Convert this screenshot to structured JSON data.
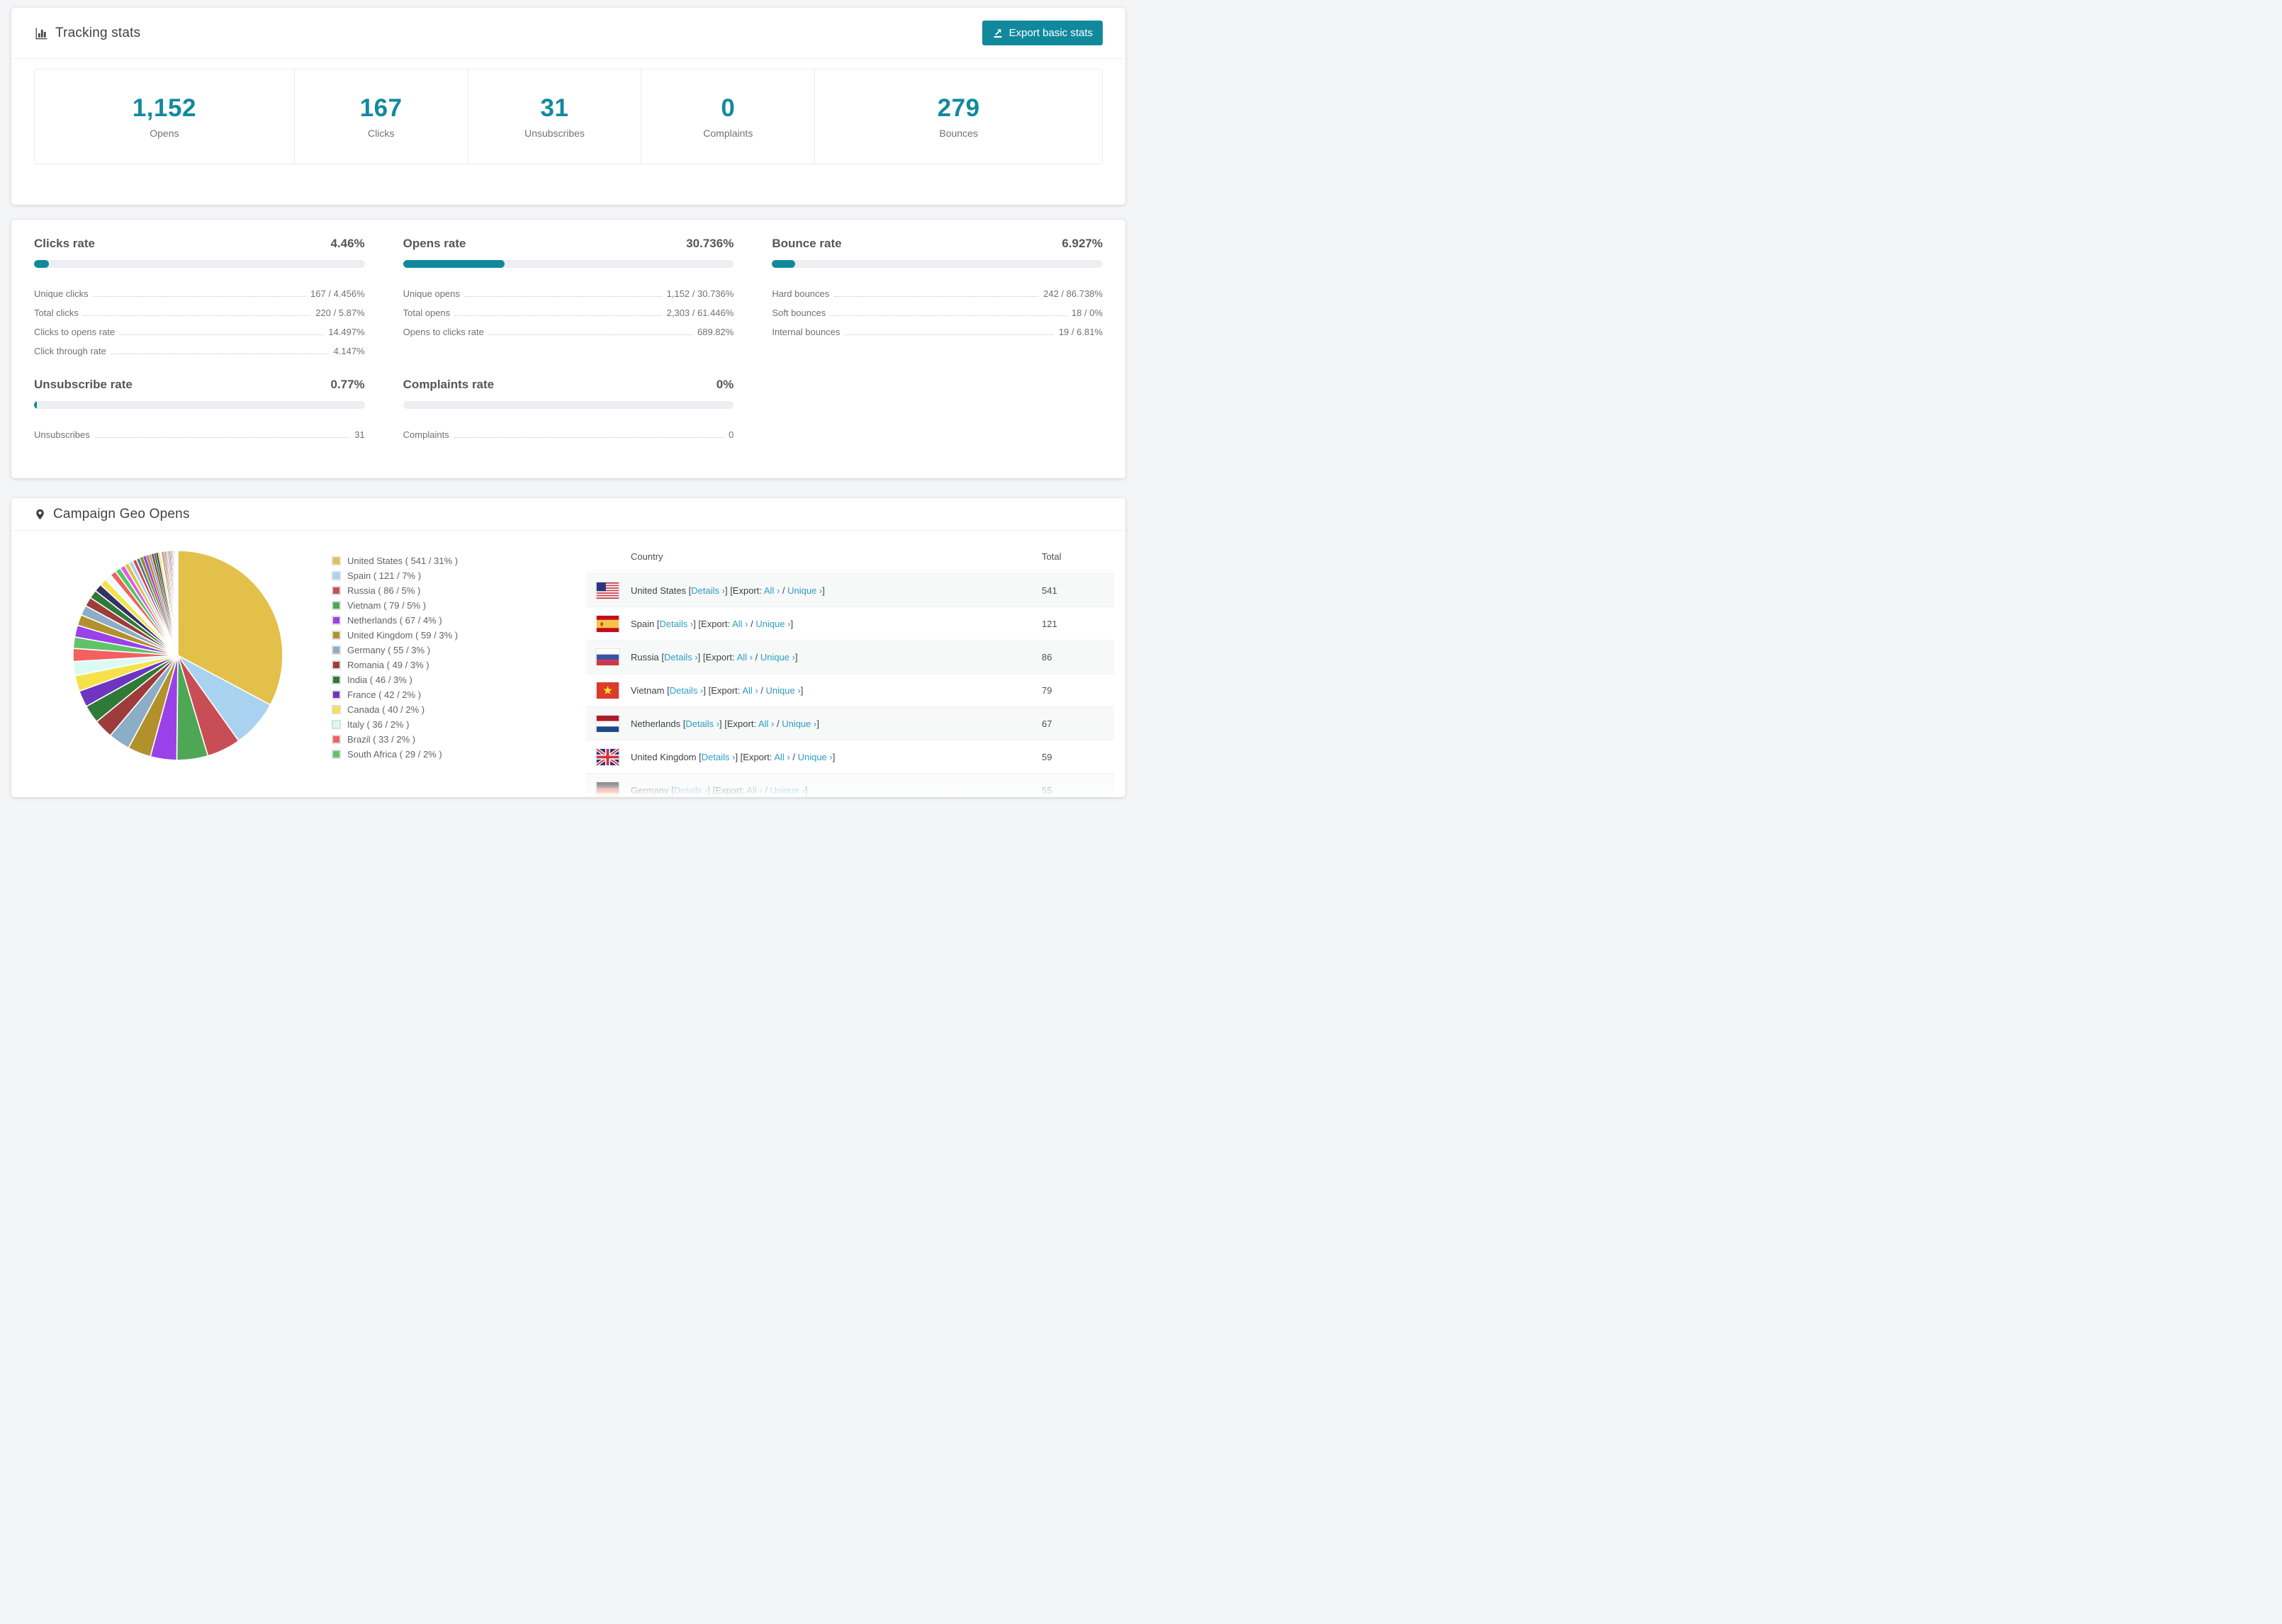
{
  "colors": {
    "accent_teal": "#11899d",
    "link_teal": "#2b9fc4",
    "stat_number": "#12899e"
  },
  "tracking_stats": {
    "title": "Tracking stats",
    "export_button_label": "Export basic stats",
    "summary": [
      {
        "value": "1,152",
        "label": "Opens"
      },
      {
        "value": "167",
        "label": "Clicks"
      },
      {
        "value": "31",
        "label": "Unsubscribes"
      },
      {
        "value": "0",
        "label": "Complaints"
      },
      {
        "value": "279",
        "label": "Bounces"
      }
    ]
  },
  "rates": {
    "blocks": [
      {
        "title": "Clicks rate",
        "value": "4.46%",
        "percent": 4.46,
        "rows": [
          {
            "label": "Unique clicks",
            "value": "167 / 4.456%"
          },
          {
            "label": "Total clicks",
            "value": "220 / 5.87%"
          },
          {
            "label": "Clicks to opens rate",
            "value": "14.497%"
          },
          {
            "label": "Click through rate",
            "value": "4.147%"
          }
        ]
      },
      {
        "title": "Opens rate",
        "value": "30.736%",
        "percent": 30.736,
        "rows": [
          {
            "label": "Unique opens",
            "value": "1,152 / 30.736%"
          },
          {
            "label": "Total opens",
            "value": "2,303 / 61.446%"
          },
          {
            "label": "Opens to clicks rate",
            "value": "689.82%"
          }
        ]
      },
      {
        "title": "Bounce rate",
        "value": "6.927%",
        "percent": 6.927,
        "rows": [
          {
            "label": "Hard bounces",
            "value": "242 / 86.738%"
          },
          {
            "label": "Soft bounces",
            "value": "18 / 0%"
          },
          {
            "label": "Internal bounces",
            "value": "19 / 6.81%"
          }
        ]
      },
      {
        "title": "Unsubscribe rate",
        "value": "0.77%",
        "percent": 0.77,
        "rows": [
          {
            "label": "Unsubscribes",
            "value": "31"
          }
        ]
      },
      {
        "title": "Complaints rate",
        "value": "0%",
        "percent": 0,
        "rows": [
          {
            "label": "Complaints",
            "value": "0"
          }
        ]
      }
    ]
  },
  "geo": {
    "title": "Campaign Geo Opens",
    "legend": [
      {
        "label": "United States ( 541 / 31% )",
        "color": "#e2c04a"
      },
      {
        "label": "Spain ( 121 / 7% )",
        "color": "#a8d2f0"
      },
      {
        "label": "Russia ( 86 / 5% )",
        "color": "#c94d55"
      },
      {
        "label": "Vietnam ( 79 / 5% )",
        "color": "#4ea754"
      },
      {
        "label": "Netherlands ( 67 / 4% )",
        "color": "#9a41e9"
      },
      {
        "label": "United Kingdom ( 59 / 3% )",
        "color": "#b2912c"
      },
      {
        "label": "Germany ( 55 / 3% )",
        "color": "#8cadc6"
      },
      {
        "label": "Romania ( 49 / 3% )",
        "color": "#9e3c3c"
      },
      {
        "label": "India ( 46 / 3% )",
        "color": "#2e7a36"
      },
      {
        "label": "France ( 42 / 2% )",
        "color": "#6d35c0"
      },
      {
        "label": "Canada ( 40 / 2% )",
        "color": "#f6e14b"
      },
      {
        "label": "Italy ( 36 / 2% )",
        "color": "#dcfaf4"
      },
      {
        "label": "Brazil ( 33 / 2% )",
        "color": "#f26060"
      },
      {
        "label": "South Africa ( 29 / 2% )",
        "color": "#5fc468"
      }
    ],
    "table": {
      "headers": [
        "Country",
        "Total"
      ],
      "links": {
        "details": "Details ›",
        "export_label": "Export:",
        "all": "All ›",
        "slash": "/",
        "unique": "Unique ›"
      },
      "rows": [
        {
          "country": "United States",
          "flag": "us",
          "total": "541"
        },
        {
          "country": "Spain",
          "flag": "es",
          "total": "121"
        },
        {
          "country": "Russia",
          "flag": "ru",
          "total": "86"
        },
        {
          "country": "Vietnam",
          "flag": "vn",
          "total": "79"
        },
        {
          "country": "Netherlands",
          "flag": "nl",
          "total": "67"
        },
        {
          "country": "United Kingdom",
          "flag": "gb",
          "total": "59"
        },
        {
          "country": "Germany",
          "flag": "de",
          "total": "55",
          "partially_visible": true
        }
      ]
    }
  },
  "chart_data": {
    "type": "pie",
    "title": "Campaign Geo Opens",
    "labels": [
      "United States",
      "Spain",
      "Russia",
      "Vietnam",
      "Netherlands",
      "United Kingdom",
      "Germany",
      "Romania",
      "India",
      "France",
      "Canada",
      "Italy",
      "Brazil",
      "South Africa"
    ],
    "values": [
      541,
      121,
      86,
      79,
      67,
      59,
      55,
      49,
      46,
      42,
      40,
      36,
      33,
      29
    ],
    "percent_labels": [
      "31%",
      "7%",
      "5%",
      "5%",
      "4%",
      "3%",
      "3%",
      "3%",
      "3%",
      "2%",
      "2%",
      "2%",
      "2%",
      "2%"
    ],
    "colors": [
      "#e2c04a",
      "#a8d2f0",
      "#c94d55",
      "#4ea754",
      "#9a41e9",
      "#b2912c",
      "#8cadc6",
      "#9e3c3c",
      "#2e7a36",
      "#6d35c0",
      "#f6e14b",
      "#dcfaf4",
      "#f26060",
      "#5fc468"
    ],
    "unlabeled_small_slices": true,
    "start_angle_deg": -90,
    "direction": "clockwise",
    "legend_position": "right"
  }
}
